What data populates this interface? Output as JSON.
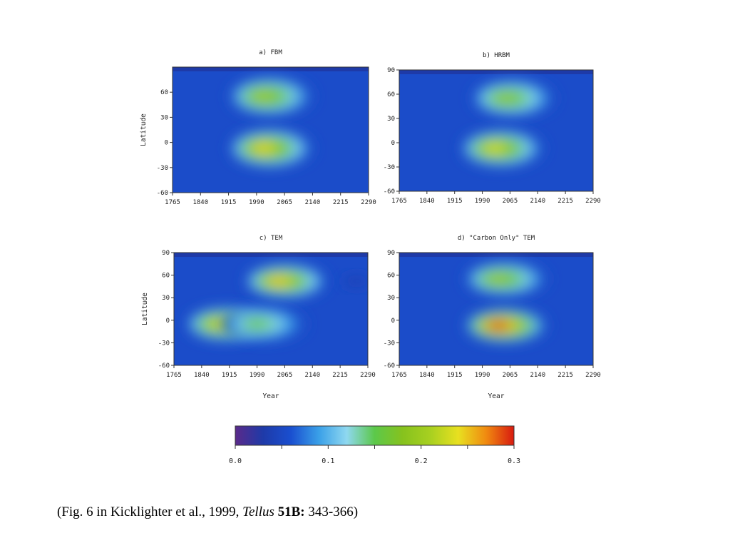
{
  "chart_data": [
    {
      "type": "heatmap",
      "title": "a) FBM",
      "xlabel": "",
      "ylabel": "Latitude",
      "xticks": [
        "1765",
        "1840",
        "1915",
        "1990",
        "2065",
        "2140",
        "2215",
        "2290"
      ],
      "yticks": [
        "60",
        "30",
        "0",
        "-30",
        "-60"
      ],
      "xlim": [
        1765,
        2290
      ],
      "ylim": [
        -60,
        90
      ],
      "blobs": [
        {
          "year": 2030,
          "lat": 55,
          "peak": 0.205
        },
        {
          "year": 2030,
          "lat": -7,
          "peak": 0.245
        }
      ]
    },
    {
      "type": "heatmap",
      "title": "b) HRBM",
      "xlabel": "",
      "ylabel": "",
      "xticks": [
        "1765",
        "1840",
        "1915",
        "1990",
        "2065",
        "2140",
        "2215",
        "2290"
      ],
      "yticks": [
        "90",
        "60",
        "30",
        "0",
        "-30",
        "-60"
      ],
      "xlim": [
        1765,
        2290
      ],
      "ylim": [
        -60,
        90
      ],
      "blobs": [
        {
          "year": 2075,
          "lat": 55,
          "peak": 0.19
        },
        {
          "year": 2045,
          "lat": -7,
          "peak": 0.235
        }
      ]
    },
    {
      "type": "heatmap",
      "title": "c) TEM",
      "xlabel": "Year",
      "ylabel": "Latitude",
      "xticks": [
        "1765",
        "1840",
        "1915",
        "1990",
        "2065",
        "2140",
        "2215",
        "2290"
      ],
      "yticks": [
        "90",
        "60",
        "30",
        "0",
        "-30",
        "-60"
      ],
      "xlim": [
        1765,
        2290
      ],
      "ylim": [
        -60,
        90
      ],
      "blobs": [
        {
          "year": 2070,
          "lat": 52,
          "peak": 0.25
        },
        {
          "year": 1910,
          "lat": -5,
          "peak": 0.235
        },
        {
          "year": 2010,
          "lat": -5,
          "peak": 0.16
        },
        {
          "year": 2260,
          "lat": 52,
          "peak": 0.03
        }
      ]
    },
    {
      "type": "heatmap",
      "title": "d) \"Carbon Only\" TEM",
      "xlabel": "Year",
      "ylabel": "",
      "xticks": [
        "1765",
        "1840",
        "1915",
        "1990",
        "2065",
        "2140",
        "2215",
        "2290"
      ],
      "yticks": [
        "90",
        "60",
        "30",
        "0",
        "-30",
        "-60"
      ],
      "xlim": [
        1765,
        2290
      ],
      "ylim": [
        -60,
        90
      ],
      "blobs": [
        {
          "year": 2055,
          "lat": 55,
          "peak": 0.2
        },
        {
          "year": 2055,
          "lat": -7,
          "peak": 0.3
        }
      ]
    }
  ],
  "colorbar": {
    "ticks": [
      "0.0",
      "0.1",
      "0.2",
      "0.3"
    ],
    "min": 0.0,
    "max": 0.3,
    "colors": [
      "#5a2a8a",
      "#1e3aa8",
      "#1a4fd0",
      "#3aa0e8",
      "#8fd8f0",
      "#5cc84a",
      "#86c21e",
      "#a8d020",
      "#e8e020",
      "#f08a10",
      "#d81a10"
    ]
  },
  "caption": {
    "prefix": "(Fig. 6 in Kicklighter et al., 1999, ",
    "journal": "Tellus",
    "volume": "51B:",
    "pages": " 343-366)"
  }
}
